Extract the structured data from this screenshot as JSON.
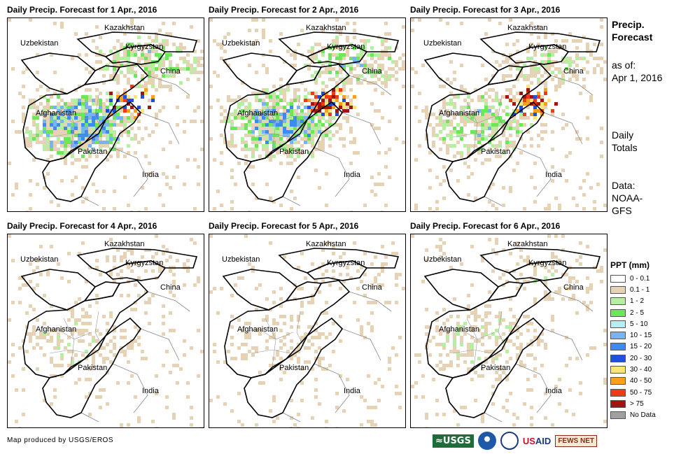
{
  "panels": [
    {
      "title": "Daily Precip. Forecast for 1 Apr., 2016",
      "intensity": 0.95,
      "hot": 0.6
    },
    {
      "title": "Daily Precip. Forecast for 2 Apr., 2016",
      "intensity": 0.9,
      "hot": 0.9
    },
    {
      "title": "Daily Precip. Forecast for 3 Apr., 2016",
      "intensity": 0.6,
      "hot": 0.8
    },
    {
      "title": "Daily Precip. Forecast for 4 Apr., 2016",
      "intensity": 0.3,
      "hot": 0.0
    },
    {
      "title": "Daily Precip. Forecast for 5 Apr., 2016",
      "intensity": 0.2,
      "hot": 0.0
    },
    {
      "title": "Daily Precip. Forecast for 6 Apr., 2016",
      "intensity": 0.35,
      "hot": 0.0
    }
  ],
  "country_labels": {
    "kazakhstan": "Kazakhstan",
    "uzbekistan": "Uzbekistan",
    "kyrgyzstan": "Kyrgyzstan",
    "china": "China",
    "afghanistan": "Afghanistan",
    "pakistan": "Pakistan",
    "india": "India"
  },
  "sidebar": {
    "title_line1": "Precip.",
    "title_line2": "Forecast",
    "asof_line1": "as of:",
    "asof_line2": "Apr 1, 2016",
    "daily_line1": "Daily",
    "daily_line2": "Totals",
    "data_line1": "Data:",
    "data_line2": "NOAA-",
    "data_line3": "GFS"
  },
  "legend": {
    "title": "PPT (mm)",
    "items": [
      {
        "label": "0 - 0.1",
        "color": "#ffffff"
      },
      {
        "label": "0.1 - 1",
        "color": "#e6d2b4"
      },
      {
        "label": "1 - 2",
        "color": "#b4f0a0"
      },
      {
        "label": "2 - 5",
        "color": "#6ee65a"
      },
      {
        "label": "5 - 10",
        "color": "#b4f0f0"
      },
      {
        "label": "10 - 15",
        "color": "#78b4f0"
      },
      {
        "label": "15 - 20",
        "color": "#3c8cf0"
      },
      {
        "label": "20 - 30",
        "color": "#1e50dc"
      },
      {
        "label": "30 - 40",
        "color": "#fae678"
      },
      {
        "label": "40 - 50",
        "color": "#faa01e"
      },
      {
        "label": "50 - 75",
        "color": "#f03c14"
      },
      {
        "label": "> 75",
        "color": "#a01414"
      },
      {
        "label": "No Data",
        "color": "#a0a0a0"
      }
    ]
  },
  "footer": {
    "credit": "Map produced by USGS/EROS"
  },
  "logos": {
    "usgs": "≈USGS",
    "usaid_a": "US",
    "usaid_b": "AID",
    "fews": "FEWS NET"
  }
}
